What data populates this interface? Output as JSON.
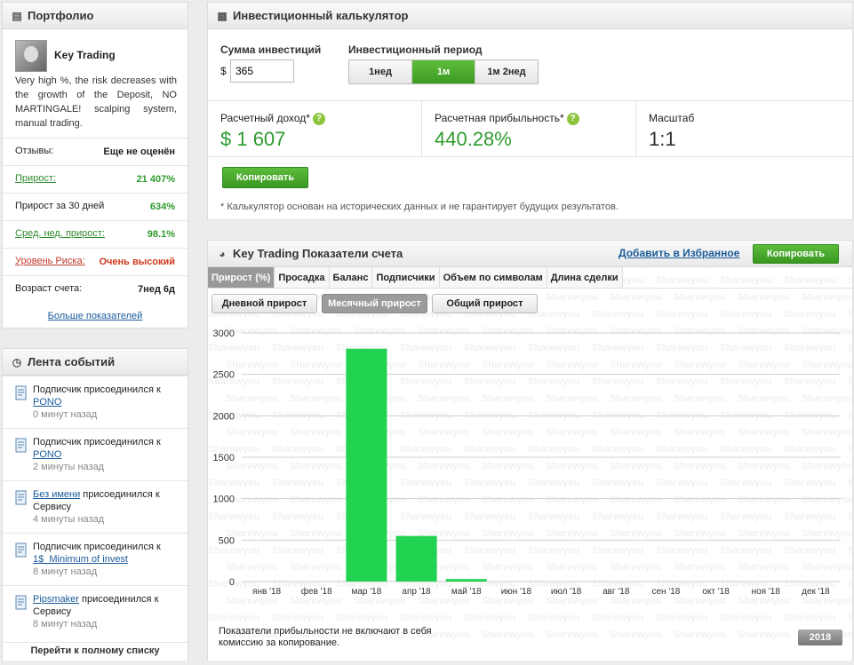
{
  "portfolio": {
    "title": "Портфолио",
    "name": "Key Trading",
    "description": "Very high %, the risk decreases with the growth of the Deposit, NO MARTINGALE! scalping system, manual trading.",
    "stats": [
      {
        "label": "Отзывы:",
        "value": "Еще не оценён",
        "label_style": "plain",
        "value_style": "plain"
      },
      {
        "label": "Прирост:",
        "value": "21 407%",
        "label_style": "glink",
        "value_style": "green"
      },
      {
        "label": "Прирост за 30 дней",
        "value": "634%",
        "label_style": "plain",
        "value_style": "green"
      },
      {
        "label": "Сред. нед. прирост:",
        "value": "98.1%",
        "label_style": "glink",
        "value_style": "green"
      },
      {
        "label": "Уровень Риска:",
        "value": "Очень высокий",
        "label_style": "rlink",
        "value_style": "red"
      },
      {
        "label": "Возраст счета:",
        "value": "7нед 6д",
        "label_style": "plain",
        "value_style": "plain"
      }
    ],
    "more_link": "Больше показателей"
  },
  "feed": {
    "title": "Лента событий",
    "items": [
      {
        "prefix": "Подписчик присоединился к",
        "link": "PONO",
        "suffix": "",
        "time": "0 минут назад"
      },
      {
        "prefix": "Подписчик присоединился к",
        "link": "PONO",
        "suffix": "",
        "time": "2 минуты назад"
      },
      {
        "prefix": "",
        "link": "Без имени",
        "suffix": " присоединился к Сервису",
        "time": "4 минуты назад"
      },
      {
        "prefix": "Подписчик присоединился к",
        "link": "1$_Minimum of invest",
        "suffix": "",
        "time": "8 минут назад"
      },
      {
        "prefix": "",
        "link": "Pipsmaker",
        "suffix": " присоединился к Сервису",
        "time": "8 минут назад"
      }
    ],
    "all_link": "Перейти к полному списку"
  },
  "calculator": {
    "title": "Инвестиционный калькулятор",
    "amount_label": "Сумма инвестиций",
    "currency": "$",
    "amount_value": "365",
    "period_label": "Инвестиционный период",
    "periods": [
      "1нед",
      "1м",
      "1м 2нед"
    ],
    "active_period": 1,
    "income_label": "Расчетный доход*",
    "income_value": "$ 1 607",
    "profit_label": "Расчетная прибыльность*",
    "profit_value": "440.28%",
    "scale_label": "Масштаб",
    "scale_value": "1:1",
    "copy_button": "Копировать",
    "help_glyph": "?",
    "note": "* Калькулятор основан на исторических данных и не гарантирует будущих результатов."
  },
  "stats_panel": {
    "title": "Key Trading Показатели счета",
    "add_favorites": "Добавить в Избранное",
    "copy_button": "Копировать",
    "tabs": [
      "Прирост (%)",
      "Просадка",
      "Баланс",
      "Подписчики",
      "Объем по символам",
      "Длина сделки"
    ],
    "active_tab": 0,
    "subtabs": [
      "Дневной прирост",
      "Месячный прирост",
      "Общий прирост"
    ],
    "active_subtab": 1,
    "watermark": "Sharewyou",
    "footnote": "Показатели прибыльности не включают в себя комиссию за копирование.",
    "year_button": "2018"
  },
  "colors": {
    "bar": "#22d352",
    "accent_green": "#3a9722",
    "link": "#1a5b9a",
    "risk": "#d03a1e"
  },
  "chart_data": {
    "type": "bar",
    "categories": [
      "янв '18",
      "фев '18",
      "мар '18",
      "апр '18",
      "май '18",
      "июн '18",
      "июл '18",
      "авг '18",
      "сен '18",
      "окт '18",
      "ноя '18",
      "дек '18"
    ],
    "values": [
      0,
      0,
      2810,
      550,
      30,
      0,
      0,
      0,
      0,
      0,
      0,
      0
    ],
    "yticks": [
      0,
      500,
      1000,
      1500,
      2000,
      2500,
      3000
    ],
    "ylim": [
      0,
      3000
    ],
    "grid": true,
    "title": "",
    "xlabel": "",
    "ylabel": ""
  }
}
